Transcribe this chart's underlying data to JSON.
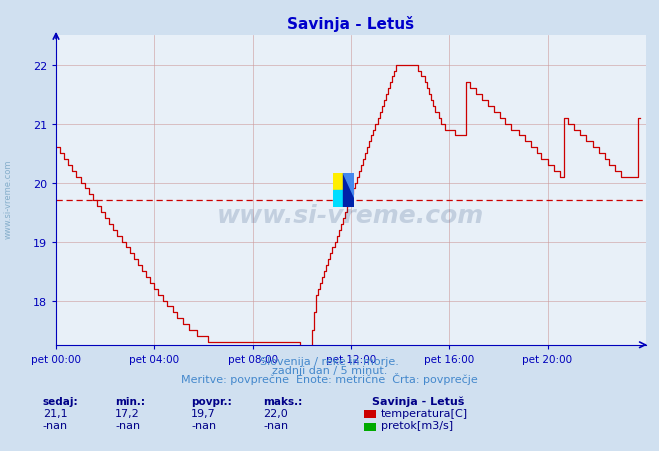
{
  "title": "Savinja - Letuš",
  "title_color": "#0000cc",
  "bg_color": "#d0e0f0",
  "plot_bg_color": "#e8f0f8",
  "grid_color": "#cc9999",
  "axis_color": "#0000bb",
  "line_color": "#cc0000",
  "avg_line_color": "#cc0000",
  "avg_value": 19.7,
  "ylim": [
    17.25,
    22.5
  ],
  "yticks": [
    18,
    19,
    20,
    21,
    22
  ],
  "xlabel_texts": [
    "pet 00:00",
    "pet 04:00",
    "pet 08:00",
    "pet 12:00",
    "pet 16:00",
    "pet 20:00"
  ],
  "xtick_positions": [
    0,
    48,
    96,
    144,
    192,
    240
  ],
  "total_points": 288,
  "footer_line1": "Slovenija / reke in morje.",
  "footer_line2": "zadnji dan / 5 minut.",
  "footer_line3": "Meritve: povprečne  Enote: metrične  Črta: povprečje",
  "footer_color": "#4488cc",
  "legend_title": "Savinja - Letuš",
  "legend_color": "#000088",
  "stat_headers": [
    "sedaj:",
    "min.:",
    "povpr.:",
    "maks.:"
  ],
  "stat_values_temp": [
    "21,1",
    "17,2",
    "19,7",
    "22,0"
  ],
  "stat_values_flow": [
    "-nan",
    "-nan",
    "-nan",
    "-nan"
  ],
  "temp_legend_color": "#cc0000",
  "flow_legend_color": "#00aa00",
  "watermark": "www.si-vreme.com",
  "temperature_data": [
    20.6,
    20.6,
    20.5,
    20.5,
    20.4,
    20.4,
    20.3,
    20.3,
    20.2,
    20.2,
    20.1,
    20.1,
    20.0,
    20.0,
    19.9,
    19.9,
    19.8,
    19.8,
    19.7,
    19.7,
    19.6,
    19.6,
    19.5,
    19.5,
    19.4,
    19.4,
    19.3,
    19.3,
    19.2,
    19.2,
    19.1,
    19.1,
    19.0,
    19.0,
    18.9,
    18.9,
    18.8,
    18.8,
    18.7,
    18.7,
    18.6,
    18.6,
    18.5,
    18.5,
    18.4,
    18.4,
    18.3,
    18.3,
    18.2,
    18.2,
    18.1,
    18.1,
    18.0,
    18.0,
    17.9,
    17.9,
    17.9,
    17.8,
    17.8,
    17.7,
    17.7,
    17.7,
    17.6,
    17.6,
    17.6,
    17.5,
    17.5,
    17.5,
    17.5,
    17.4,
    17.4,
    17.4,
    17.4,
    17.4,
    17.3,
    17.3,
    17.3,
    17.3,
    17.3,
    17.3,
    17.3,
    17.3,
    17.3,
    17.3,
    17.3,
    17.3,
    17.3,
    17.3,
    17.3,
    17.3,
    17.3,
    17.3,
    17.3,
    17.3,
    17.3,
    17.3,
    17.3,
    17.3,
    17.3,
    17.3,
    17.3,
    17.3,
    17.3,
    17.3,
    17.3,
    17.3,
    17.3,
    17.3,
    17.3,
    17.3,
    17.3,
    17.3,
    17.3,
    17.3,
    17.3,
    17.3,
    17.3,
    17.3,
    17.3,
    17.2,
    17.2,
    17.2,
    17.2,
    17.2,
    17.2,
    17.5,
    17.8,
    18.1,
    18.2,
    18.3,
    18.4,
    18.5,
    18.6,
    18.7,
    18.8,
    18.9,
    19.0,
    19.1,
    19.2,
    19.3,
    19.4,
    19.5,
    19.6,
    19.7,
    19.8,
    19.9,
    20.0,
    20.1,
    20.2,
    20.3,
    20.4,
    20.5,
    20.6,
    20.7,
    20.8,
    20.9,
    21.0,
    21.1,
    21.2,
    21.3,
    21.4,
    21.5,
    21.6,
    21.7,
    21.8,
    21.9,
    22.0,
    22.0,
    22.0,
    22.0,
    22.0,
    22.0,
    22.0,
    22.0,
    22.0,
    22.0,
    22.0,
    21.9,
    21.8,
    21.8,
    21.7,
    21.6,
    21.5,
    21.4,
    21.3,
    21.2,
    21.2,
    21.1,
    21.0,
    21.0,
    20.9,
    20.9,
    20.9,
    20.9,
    20.9,
    20.8,
    20.8,
    20.8,
    20.8,
    20.8,
    21.7,
    21.7,
    21.6,
    21.6,
    21.6,
    21.5,
    21.5,
    21.5,
    21.4,
    21.4,
    21.4,
    21.3,
    21.3,
    21.3,
    21.2,
    21.2,
    21.2,
    21.1,
    21.1,
    21.0,
    21.0,
    21.0,
    20.9,
    20.9,
    20.9,
    20.9,
    20.8,
    20.8,
    20.8,
    20.7,
    20.7,
    20.7,
    20.6,
    20.6,
    20.6,
    20.5,
    20.5,
    20.4,
    20.4,
    20.4,
    20.3,
    20.3,
    20.3,
    20.2,
    20.2,
    20.2,
    20.1,
    20.1,
    21.1,
    21.1,
    21.0,
    21.0,
    21.0,
    20.9,
    20.9,
    20.9,
    20.8,
    20.8,
    20.8,
    20.7,
    20.7,
    20.7,
    20.6,
    20.6,
    20.6,
    20.5,
    20.5,
    20.5,
    20.4,
    20.4,
    20.3,
    20.3,
    20.3,
    20.2,
    20.2,
    20.2,
    20.1,
    20.1,
    20.1,
    20.1,
    20.1,
    20.1,
    20.1,
    20.1,
    21.1,
    21.1
  ]
}
